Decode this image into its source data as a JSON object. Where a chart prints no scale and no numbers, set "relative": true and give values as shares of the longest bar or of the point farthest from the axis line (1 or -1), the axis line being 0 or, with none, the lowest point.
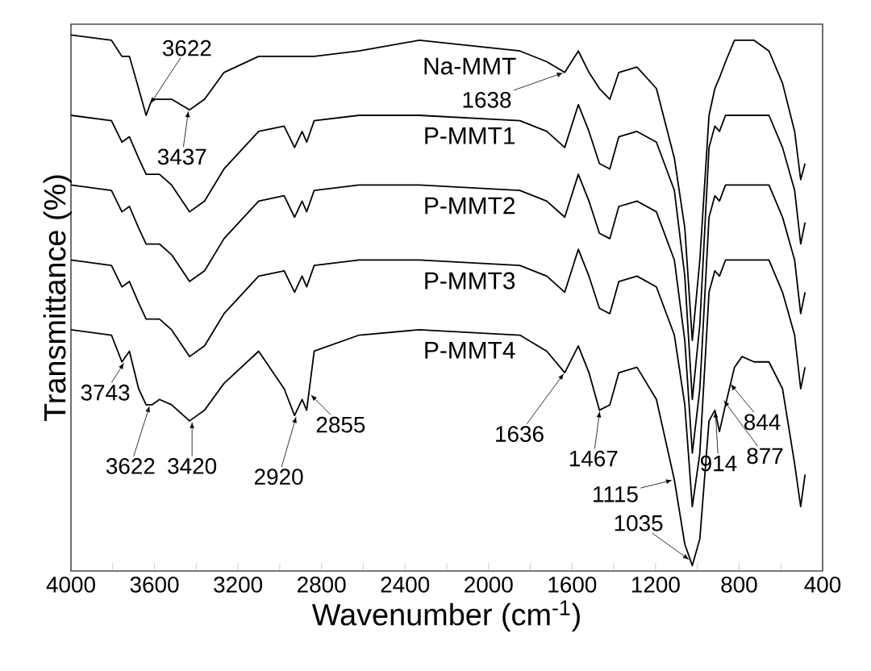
{
  "chart_data": {
    "type": "line",
    "relative": true,
    "xlabel": "Wavenumber (cm$^{-1}$)",
    "ylabel": "Transmittance (%)",
    "xlim": [
      4000,
      400
    ],
    "xticks": [
      4000,
      {
        "value": 3800,
        "label": null
      },
      3600,
      {
        "value": 3400,
        "label": null
      },
      3200,
      {
        "value": 3000,
        "label": null
      },
      2800,
      {
        "value": 2600,
        "label": null
      },
      2400,
      {
        "value": 2200,
        "label": null
      },
      2000,
      {
        "value": 1800,
        "label": null
      },
      1600,
      {
        "value": 1400,
        "label": null
      },
      1200,
      {
        "value": 1000,
        "label": null
      },
      800,
      {
        "value": 600,
        "label": null
      },
      400
    ],
    "line_style": "solid",
    "x": [
      4000,
      3806,
      3756,
      3720,
      3676,
      3640,
      3612,
      3576,
      3518,
      3432,
      3360,
      3267,
      3101,
      2979,
      2929,
      2893,
      2871,
      2835,
      2620,
      2332,
      1850,
      1721,
      1635,
      1570,
      1519,
      1469,
      1419,
      1376,
      1289,
      1196,
      1110,
      1060,
      1024,
      988,
      944,
      916,
      894,
      865,
      822,
      786,
      728,
      657,
      592,
      534,
      505,
      484
    ],
    "series": [
      {
        "name": "Na-MMT",
        "color": "#000000",
        "values": [
          1.0,
          0.99,
          0.96,
          0.96,
          0.9,
          0.85,
          0.88,
          0.88,
          0.88,
          0.86,
          0.88,
          0.93,
          0.96,
          0.96,
          0.96,
          0.96,
          0.96,
          0.96,
          0.97,
          0.99,
          0.97,
          0.95,
          0.93,
          0.97,
          0.93,
          0.9,
          0.88,
          0.93,
          0.94,
          0.9,
          0.77,
          0.64,
          0.43,
          0.58,
          0.85,
          0.9,
          0.92,
          0.95,
          0.99,
          0.99,
          0.99,
          0.97,
          0.91,
          0.82,
          0.73,
          0.76
        ]
      },
      {
        "name": "P-MMT1",
        "color": "#000000",
        "values": [
          0.85,
          0.84,
          0.8,
          0.81,
          0.77,
          0.74,
          0.74,
          0.74,
          0.72,
          0.67,
          0.69,
          0.75,
          0.82,
          0.83,
          0.79,
          0.82,
          0.8,
          0.84,
          0.85,
          0.85,
          0.84,
          0.82,
          0.79,
          0.87,
          0.82,
          0.76,
          0.75,
          0.81,
          0.82,
          0.8,
          0.71,
          0.55,
          0.32,
          0.46,
          0.79,
          0.83,
          0.82,
          0.85,
          0.85,
          0.85,
          0.85,
          0.85,
          0.79,
          0.71,
          0.61,
          0.65
        ]
      },
      {
        "name": "P-MMT2",
        "color": "#000000",
        "values": [
          0.72,
          0.71,
          0.67,
          0.68,
          0.64,
          0.61,
          0.61,
          0.61,
          0.59,
          0.54,
          0.56,
          0.62,
          0.69,
          0.7,
          0.66,
          0.69,
          0.67,
          0.71,
          0.72,
          0.72,
          0.71,
          0.69,
          0.66,
          0.74,
          0.69,
          0.63,
          0.62,
          0.68,
          0.69,
          0.67,
          0.58,
          0.43,
          0.22,
          0.34,
          0.66,
          0.7,
          0.69,
          0.72,
          0.72,
          0.72,
          0.72,
          0.72,
          0.66,
          0.58,
          0.48,
          0.52
        ]
      },
      {
        "name": "P-MMT3",
        "color": "#000000",
        "values": [
          0.58,
          0.57,
          0.53,
          0.54,
          0.5,
          0.47,
          0.47,
          0.47,
          0.45,
          0.4,
          0.42,
          0.48,
          0.55,
          0.56,
          0.52,
          0.55,
          0.53,
          0.57,
          0.58,
          0.58,
          0.57,
          0.55,
          0.52,
          0.6,
          0.55,
          0.49,
          0.48,
          0.54,
          0.55,
          0.53,
          0.44,
          0.31,
          0.12,
          0.22,
          0.52,
          0.56,
          0.55,
          0.58,
          0.58,
          0.58,
          0.58,
          0.58,
          0.52,
          0.44,
          0.34,
          0.38
        ]
      },
      {
        "name": "P-MMT4",
        "color": "#000000",
        "values": [
          0.45,
          0.44,
          0.39,
          0.41,
          0.34,
          0.31,
          0.31,
          0.32,
          0.31,
          0.28,
          0.3,
          0.35,
          0.41,
          0.34,
          0.29,
          0.32,
          0.3,
          0.41,
          0.44,
          0.45,
          0.44,
          0.41,
          0.37,
          0.42,
          0.37,
          0.3,
          0.31,
          0.37,
          0.38,
          0.32,
          0.17,
          0.05,
          0.01,
          0.06,
          0.28,
          0.3,
          0.26,
          0.31,
          0.38,
          0.4,
          0.39,
          0.39,
          0.34,
          0.2,
          0.12,
          0.18
        ]
      }
    ],
    "annotations": [
      {
        "text": "3622",
        "x": 3622,
        "y": 0.87
      },
      {
        "text": "3437",
        "x": 3437,
        "y": 0.86
      },
      {
        "text": "1638",
        "x": 1638,
        "y": 0.93
      },
      {
        "text": "3743",
        "x": 3743,
        "y": 0.39
      },
      {
        "text": "3622",
        "x": 3622,
        "y": 0.31
      },
      {
        "text": "3420",
        "x": 3420,
        "y": 0.28
      },
      {
        "text": "2920",
        "x": 2920,
        "y": 0.29
      },
      {
        "text": "2855",
        "x": 2855,
        "y": 0.33
      },
      {
        "text": "1636",
        "x": 1636,
        "y": 0.37
      },
      {
        "text": "1467",
        "x": 1467,
        "y": 0.3
      },
      {
        "text": "1115",
        "x": 1115,
        "y": 0.17
      },
      {
        "text": "1035",
        "x": 1035,
        "y": 0.02
      },
      {
        "text": "914",
        "x": 914,
        "y": 0.3
      },
      {
        "text": "877",
        "x": 877,
        "y": 0.32
      },
      {
        "text": "844",
        "x": 844,
        "y": 0.35
      }
    ]
  }
}
